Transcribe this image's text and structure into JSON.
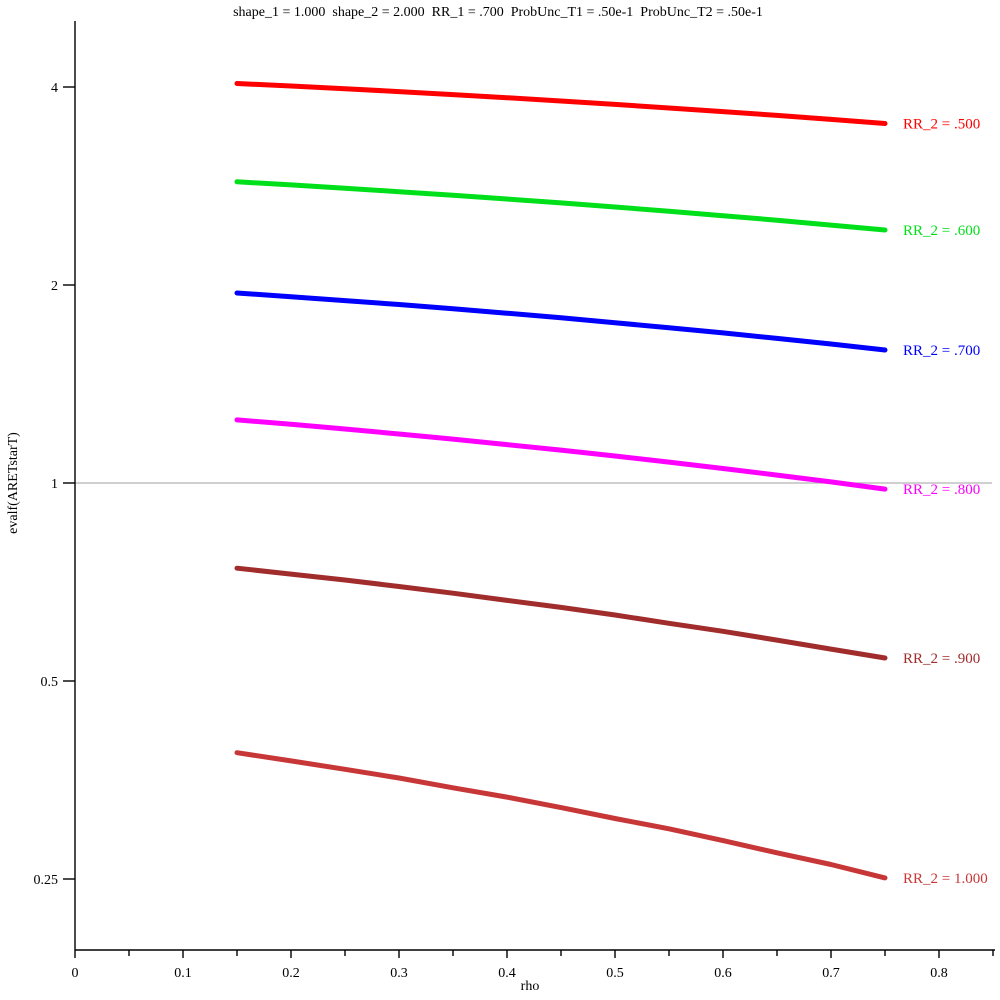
{
  "chart_data": {
    "type": "line",
    "title": "shape_1 = 1.000  shape_2 = 2.000  RR_1 = .700  ProbUnc_T1 = .50e-1  ProbUnc_T2 = .50e-1",
    "xlabel": "rho",
    "ylabel": "evalf(ARETstarT)",
    "grid": false,
    "legend_position": "right-end-labels",
    "axis_color": "#000000",
    "x_axis": {
      "major_ticks": [
        0,
        0.1,
        0.2,
        0.3,
        0.4,
        0.5,
        0.6,
        0.7,
        0.8
      ],
      "major_tick_labels": [
        "0",
        "0.1",
        "0.2",
        "0.3",
        "0.4",
        "0.5",
        "0.6",
        "0.7",
        "0.8"
      ],
      "minor_ticks": [
        0.05,
        0.15,
        0.25,
        0.35,
        0.45,
        0.55,
        0.65,
        0.75,
        0.85
      ],
      "xlim": [
        0,
        0.852
      ]
    },
    "y_axis": {
      "scale": "log2",
      "ticks": [
        4,
        2,
        1,
        0.5,
        0.25
      ],
      "tick_labels": [
        "4",
        "2",
        "1",
        "0.5",
        "0.25"
      ],
      "ylim": [
        0.195,
        5.05
      ]
    },
    "reference_line": {
      "y": 1,
      "color": "#b3b3b3"
    },
    "x": [
      0.15,
      0.2,
      0.25,
      0.3,
      0.35,
      0.4,
      0.45,
      0.5,
      0.55,
      0.6,
      0.65,
      0.7,
      0.75
    ],
    "series": [
      {
        "id": "rr2-0500",
        "label": "RR_2 = .500",
        "color": "#ff0000",
        "values": [
          4.05,
          4.014,
          3.976,
          3.936,
          3.895,
          3.853,
          3.809,
          3.764,
          3.717,
          3.67,
          3.621,
          3.571,
          3.52
        ]
      },
      {
        "id": "rr2-0600",
        "label": "RR_2 = .600",
        "color": "#00e01a",
        "values": [
          2.87,
          2.839,
          2.807,
          2.773,
          2.739,
          2.703,
          2.666,
          2.628,
          2.589,
          2.549,
          2.509,
          2.467,
          2.425
        ]
      },
      {
        "id": "rr2-0700",
        "label": "RR_2 = .700",
        "color": "#0000ff",
        "values": [
          1.945,
          1.92,
          1.894,
          1.868,
          1.84,
          1.812,
          1.783,
          1.753,
          1.722,
          1.691,
          1.659,
          1.627,
          1.593
        ]
      },
      {
        "id": "rr2-0800",
        "label": "RR_2 = .800",
        "color": "#ff00ff",
        "values": [
          1.247,
          1.228,
          1.208,
          1.187,
          1.166,
          1.144,
          1.122,
          1.099,
          1.076,
          1.052,
          1.028,
          1.004,
          0.979
        ]
      },
      {
        "id": "rr2-0900",
        "label": "RR_2 = .900",
        "color": "#a02c2c",
        "values": [
          0.742,
          0.727,
          0.712,
          0.696,
          0.68,
          0.663,
          0.647,
          0.63,
          0.612,
          0.595,
          0.577,
          0.559,
          0.542
        ]
      },
      {
        "id": "rr2-1000",
        "label": "RR_2 = 1.000",
        "color": "#c83737",
        "values": [
          0.389,
          0.378,
          0.367,
          0.356,
          0.344,
          0.333,
          0.321,
          0.309,
          0.298,
          0.286,
          0.274,
          0.263,
          0.251
        ]
      }
    ]
  }
}
